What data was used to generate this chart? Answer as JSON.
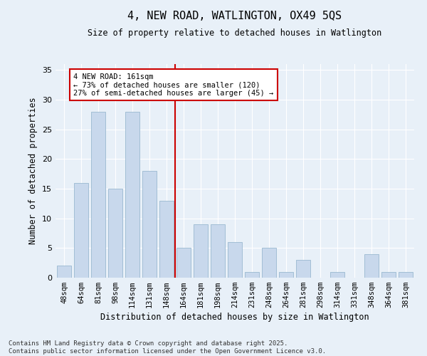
{
  "title": "4, NEW ROAD, WATLINGTON, OX49 5QS",
  "subtitle": "Size of property relative to detached houses in Watlington",
  "xlabel": "Distribution of detached houses by size in Watlington",
  "ylabel": "Number of detached properties",
  "categories": [
    "48sqm",
    "64sqm",
    "81sqm",
    "98sqm",
    "114sqm",
    "131sqm",
    "148sqm",
    "164sqm",
    "181sqm",
    "198sqm",
    "214sqm",
    "231sqm",
    "248sqm",
    "264sqm",
    "281sqm",
    "298sqm",
    "314sqm",
    "331sqm",
    "348sqm",
    "364sqm",
    "381sqm"
  ],
  "values": [
    2,
    16,
    28,
    15,
    28,
    18,
    13,
    5,
    9,
    9,
    6,
    1,
    5,
    1,
    3,
    0,
    1,
    0,
    4,
    1,
    1
  ],
  "bar_color": "#c8d8ec",
  "bar_edgecolor": "#9ab8d0",
  "vline_color": "#cc0000",
  "vline_index": 7,
  "annotation_text": "4 NEW ROAD: 161sqm\n← 73% of detached houses are smaller (120)\n27% of semi-detached houses are larger (45) →",
  "annotation_box_facecolor": "#ffffff",
  "annotation_box_edgecolor": "#cc0000",
  "ylim": [
    0,
    36
  ],
  "yticks": [
    0,
    5,
    10,
    15,
    20,
    25,
    30,
    35
  ],
  "fig_facecolor": "#e8f0f8",
  "ax_facecolor": "#e8f0f8",
  "footer": "Contains HM Land Registry data © Crown copyright and database right 2025.\nContains public sector information licensed under the Open Government Licence v3.0."
}
